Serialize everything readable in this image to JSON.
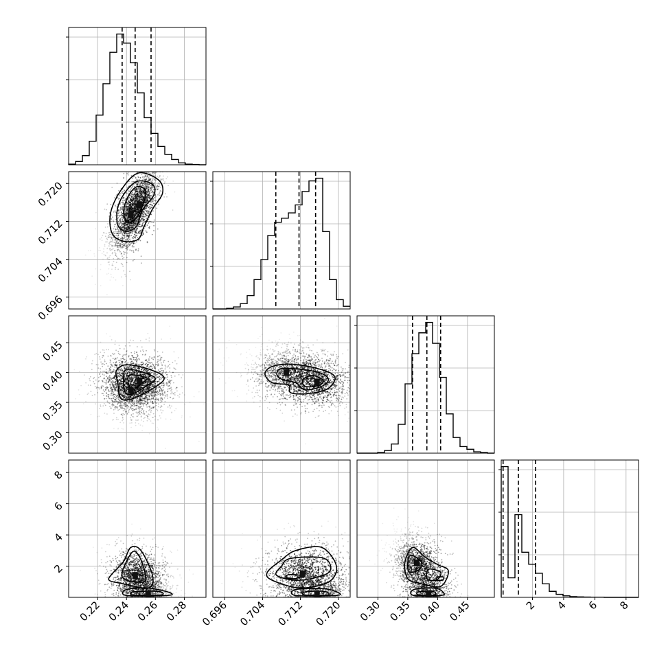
{
  "chart_data": {
    "type": "corner",
    "n_params": 4,
    "grid": true,
    "params": [
      {
        "range": [
          0.2,
          0.295
        ],
        "ticks": [
          0.22,
          0.24,
          0.26,
          0.28
        ],
        "tick_labels": [
          "0.22",
          "0.24",
          "0.26",
          "0.28"
        ],
        "hist_edges_start": 0.2,
        "hist_bin_width": 0.00475,
        "hist_counts": [
          0.005,
          0.025,
          0.07,
          0.18,
          0.38,
          0.62,
          0.86,
          1.0,
          0.93,
          0.78,
          0.55,
          0.36,
          0.24,
          0.14,
          0.08,
          0.04,
          0.015,
          0.005,
          0.002,
          0.0
        ],
        "quantiles": [
          0.237,
          0.246,
          0.257
        ]
      },
      {
        "range": [
          0.6935,
          0.7225
        ],
        "ticks": [
          0.696,
          0.704,
          0.712,
          0.72
        ],
        "tick_labels": [
          "0.696",
          "0.704",
          "0.712",
          "0.720"
        ],
        "hist_edges_start": 0.6935,
        "hist_bin_width": 0.00145,
        "hist_counts": [
          0.0,
          0.0,
          0.005,
          0.015,
          0.04,
          0.1,
          0.22,
          0.37,
          0.55,
          0.65,
          0.68,
          0.72,
          0.78,
          0.88,
          0.96,
          0.98,
          0.58,
          0.22,
          0.07,
          0.02
        ],
        "quantiles": [
          0.7068,
          0.7117,
          0.7152
        ]
      },
      {
        "range": [
          0.265,
          0.495
        ],
        "ticks": [
          0.3,
          0.35,
          0.4,
          0.45
        ],
        "tick_labels": [
          "0.30",
          "0.35",
          "0.40",
          "0.45"
        ],
        "hist_edges_start": 0.265,
        "hist_bin_width": 0.0115,
        "hist_counts": [
          0.0,
          0.0,
          0.0,
          0.005,
          0.02,
          0.07,
          0.22,
          0.53,
          0.76,
          0.92,
          1.0,
          0.84,
          0.58,
          0.3,
          0.12,
          0.05,
          0.03,
          0.01,
          0.005,
          0.0
        ],
        "quantiles": [
          0.358,
          0.382,
          0.405
        ]
      },
      {
        "range": [
          0.0,
          8.8
        ],
        "ticks": [
          2,
          4,
          6,
          8
        ],
        "tick_labels": [
          "2",
          "4",
          "6",
          "8"
        ],
        "hist_edges_start": 0.0,
        "hist_bin_width": 0.44,
        "hist_counts": [
          0.87,
          0.13,
          0.55,
          0.3,
          0.22,
          0.16,
          0.09,
          0.04,
          0.02,
          0.01,
          0.005,
          0.003,
          0.002,
          0.001,
          0.001,
          0.0,
          0.0,
          0.0,
          0.0,
          0.0
        ],
        "quantiles": [
          0.12,
          1.1,
          2.2
        ]
      }
    ],
    "pairs": [
      {
        "row": 1,
        "col": 0,
        "center": [
          0.247,
          0.7135
        ],
        "spread": [
          0.0085,
          0.0048
        ],
        "rho": 0.7,
        "modes": [
          [
            0.243,
            0.7135
          ],
          [
            0.249,
            0.7155
          ]
        ],
        "contours": [
          [
            [
              0.248,
              0.7222
            ],
            [
              0.262,
              0.7208
            ],
            [
              0.265,
              0.718
            ],
            [
              0.258,
              0.7146
            ],
            [
              0.252,
              0.7108
            ],
            [
              0.248,
              0.7082
            ],
            [
              0.238,
              0.7078
            ],
            [
              0.23,
              0.7095
            ],
            [
              0.229,
              0.7138
            ],
            [
              0.236,
              0.7185
            ]
          ],
          [
            [
              0.248,
              0.7205
            ],
            [
              0.258,
              0.7198
            ],
            [
              0.259,
              0.7176
            ],
            [
              0.251,
              0.7144
            ],
            [
              0.247,
              0.711
            ],
            [
              0.24,
              0.7099
            ],
            [
              0.234,
              0.7112
            ],
            [
              0.234,
              0.715
            ],
            [
              0.24,
              0.7185
            ]
          ],
          [
            [
              0.247,
              0.7193
            ],
            [
              0.253,
              0.7186
            ],
            [
              0.252,
              0.716
            ],
            [
              0.247,
              0.7128
            ],
            [
              0.241,
              0.7118
            ],
            [
              0.238,
              0.714
            ],
            [
              0.241,
              0.7172
            ]
          ]
        ]
      },
      {
        "row": 2,
        "col": 0,
        "center": [
          0.246,
          0.388
        ],
        "spread": [
          0.012,
          0.024
        ],
        "rho": -0.15,
        "modes": [
          [
            0.243,
            0.37
          ],
          [
            0.249,
            0.386
          ]
        ],
        "contours": [
          [
            [
              0.24,
              0.413
            ],
            [
              0.255,
              0.406
            ],
            [
              0.266,
              0.392
            ],
            [
              0.26,
              0.376
            ],
            [
              0.244,
              0.356
            ],
            [
              0.236,
              0.357
            ],
            [
              0.234,
              0.382
            ],
            [
              0.233,
              0.403
            ]
          ],
          [
            [
              0.24,
              0.405
            ],
            [
              0.252,
              0.4
            ],
            [
              0.26,
              0.39
            ],
            [
              0.254,
              0.378
            ],
            [
              0.244,
              0.364
            ],
            [
              0.239,
              0.367
            ],
            [
              0.238,
              0.39
            ]
          ],
          [
            [
              0.243,
              0.396
            ],
            [
              0.254,
              0.391
            ],
            [
              0.25,
              0.381
            ],
            [
              0.245,
              0.371
            ],
            [
              0.242,
              0.377
            ],
            [
              0.241,
              0.39
            ]
          ]
        ]
      },
      {
        "row": 2,
        "col": 1,
        "center": [
          0.7135,
          0.388
        ],
        "spread": [
          0.0042,
          0.022
        ],
        "rho": -0.1,
        "modes": [
          [
            0.709,
            0.4
          ],
          [
            0.7155,
            0.384
          ]
        ],
        "contours": [
          [
            [
              0.71,
              0.414
            ],
            [
              0.7155,
              0.407
            ],
            [
              0.7192,
              0.394
            ],
            [
              0.718,
              0.374
            ],
            [
              0.714,
              0.365
            ],
            [
              0.71,
              0.366
            ],
            [
              0.7095,
              0.379
            ],
            [
              0.706,
              0.383
            ],
            [
              0.7045,
              0.398
            ],
            [
              0.706,
              0.41
            ]
          ],
          [
            [
              0.7085,
              0.407
            ],
            [
              0.715,
              0.402
            ],
            [
              0.7178,
              0.391
            ],
            [
              0.7168,
              0.378
            ],
            [
              0.713,
              0.371
            ],
            [
              0.711,
              0.383
            ],
            [
              0.708,
              0.389
            ],
            [
              0.707,
              0.399
            ]
          ],
          [
            [
              0.7145,
              0.395
            ],
            [
              0.7168,
              0.387
            ],
            [
              0.7158,
              0.378
            ],
            [
              0.713,
              0.377
            ],
            [
              0.7125,
              0.388
            ]
          ]
        ]
      },
      {
        "row": 3,
        "col": 0,
        "center": [
          0.246,
          1.4
        ],
        "spread": [
          0.009,
          0.9
        ],
        "rho": 0.0,
        "modes": [
          [
            0.246,
            1.4
          ],
          [
            0.255,
            0.2
          ]
        ],
        "contours": [
          [
            [
              0.243,
              3.2
            ],
            [
              0.25,
              3.0
            ],
            [
              0.258,
              1.4
            ],
            [
              0.255,
              0.6
            ],
            [
              0.236,
              0.9
            ],
            [
              0.228,
              1.1
            ],
            [
              0.23,
              1.5
            ],
            [
              0.238,
              2.3
            ]
          ],
          [
            [
              0.244,
              2.9
            ],
            [
              0.249,
              2.6
            ],
            [
              0.253,
              1.5
            ],
            [
              0.252,
              1.0
            ],
            [
              0.24,
              1.1
            ],
            [
              0.237,
              1.6
            ]
          ],
          [
            [
              0.24,
              0.5
            ],
            [
              0.255,
              0.6
            ],
            [
              0.27,
              0.3
            ],
            [
              0.268,
              0.12
            ],
            [
              0.24,
              0.12
            ]
          ],
          [
            [
              0.245,
              0.35
            ],
            [
              0.262,
              0.38
            ],
            [
              0.264,
              0.15
            ],
            [
              0.245,
              0.15
            ]
          ]
        ]
      },
      {
        "row": 3,
        "col": 1,
        "center": [
          0.7135,
          1.5
        ],
        "spread": [
          0.0045,
          1.0
        ],
        "rho": 0.1,
        "modes": [
          [
            0.7125,
            1.5
          ],
          [
            0.7155,
            0.2
          ]
        ],
        "contours": [
          [
            [
              0.711,
              3.0
            ],
            [
              0.7165,
              3.2
            ],
            [
              0.7196,
              2.0
            ],
            [
              0.718,
              1.0
            ],
            [
              0.712,
              0.6
            ],
            [
              0.706,
              1.1
            ],
            [
              0.705,
              1.6
            ],
            [
              0.708,
              2.4
            ]
          ],
          [
            [
              0.71,
              2.5
            ],
            [
              0.717,
              2.5
            ],
            [
              0.718,
              1.6
            ],
            [
              0.712,
              1.1
            ],
            [
              0.707,
              1.4
            ],
            [
              0.708,
              2.0
            ]
          ],
          [
            [
              0.7095,
              1.45
            ],
            [
              0.712,
              1.4
            ],
            [
              0.711,
              1.2
            ],
            [
              0.709,
              1.25
            ]
          ],
          [
            [
              0.711,
              0.5
            ],
            [
              0.717,
              0.55
            ],
            [
              0.72,
              0.3
            ],
            [
              0.7195,
              0.12
            ],
            [
              0.711,
              0.12
            ]
          ],
          [
            [
              0.713,
              0.35
            ],
            [
              0.717,
              0.38
            ],
            [
              0.7178,
              0.15
            ],
            [
              0.713,
              0.15
            ]
          ]
        ]
      },
      {
        "row": 3,
        "col": 2,
        "center": [
          0.38,
          1.5
        ],
        "spread": [
          0.022,
          1.0
        ],
        "rho": -0.3,
        "modes": [
          [
            0.365,
            2.2
          ],
          [
            0.385,
            0.2
          ]
        ],
        "contours": [
          [
            [
              0.358,
              3.2
            ],
            [
              0.378,
              2.6
            ],
            [
              0.4,
              2.1
            ],
            [
              0.418,
              1.7
            ],
            [
              0.405,
              0.7
            ],
            [
              0.37,
              0.9
            ],
            [
              0.35,
              1.2
            ],
            [
              0.345,
              2.2
            ]
          ],
          [
            [
              0.355,
              2.7
            ],
            [
              0.372,
              2.3
            ],
            [
              0.37,
              1.8
            ],
            [
              0.353,
              1.6
            ],
            [
              0.35,
              2.2
            ]
          ],
          [
            [
              0.385,
              1.8
            ],
            [
              0.405,
              1.6
            ],
            [
              0.398,
              1.1
            ],
            [
              0.382,
              1.2
            ]
          ],
          [
            [
              0.4,
              1.3
            ],
            [
              0.41,
              1.3
            ],
            [
              0.408,
              1.1
            ],
            [
              0.398,
              1.1
            ]
          ],
          [
            [
              0.36,
              0.5
            ],
            [
              0.395,
              0.6
            ],
            [
              0.41,
              0.3
            ],
            [
              0.405,
              0.12
            ],
            [
              0.36,
              0.12
            ]
          ],
          [
            [
              0.368,
              0.35
            ],
            [
              0.392,
              0.38
            ],
            [
              0.395,
              0.15
            ],
            [
              0.368,
              0.15
            ]
          ]
        ]
      }
    ]
  }
}
